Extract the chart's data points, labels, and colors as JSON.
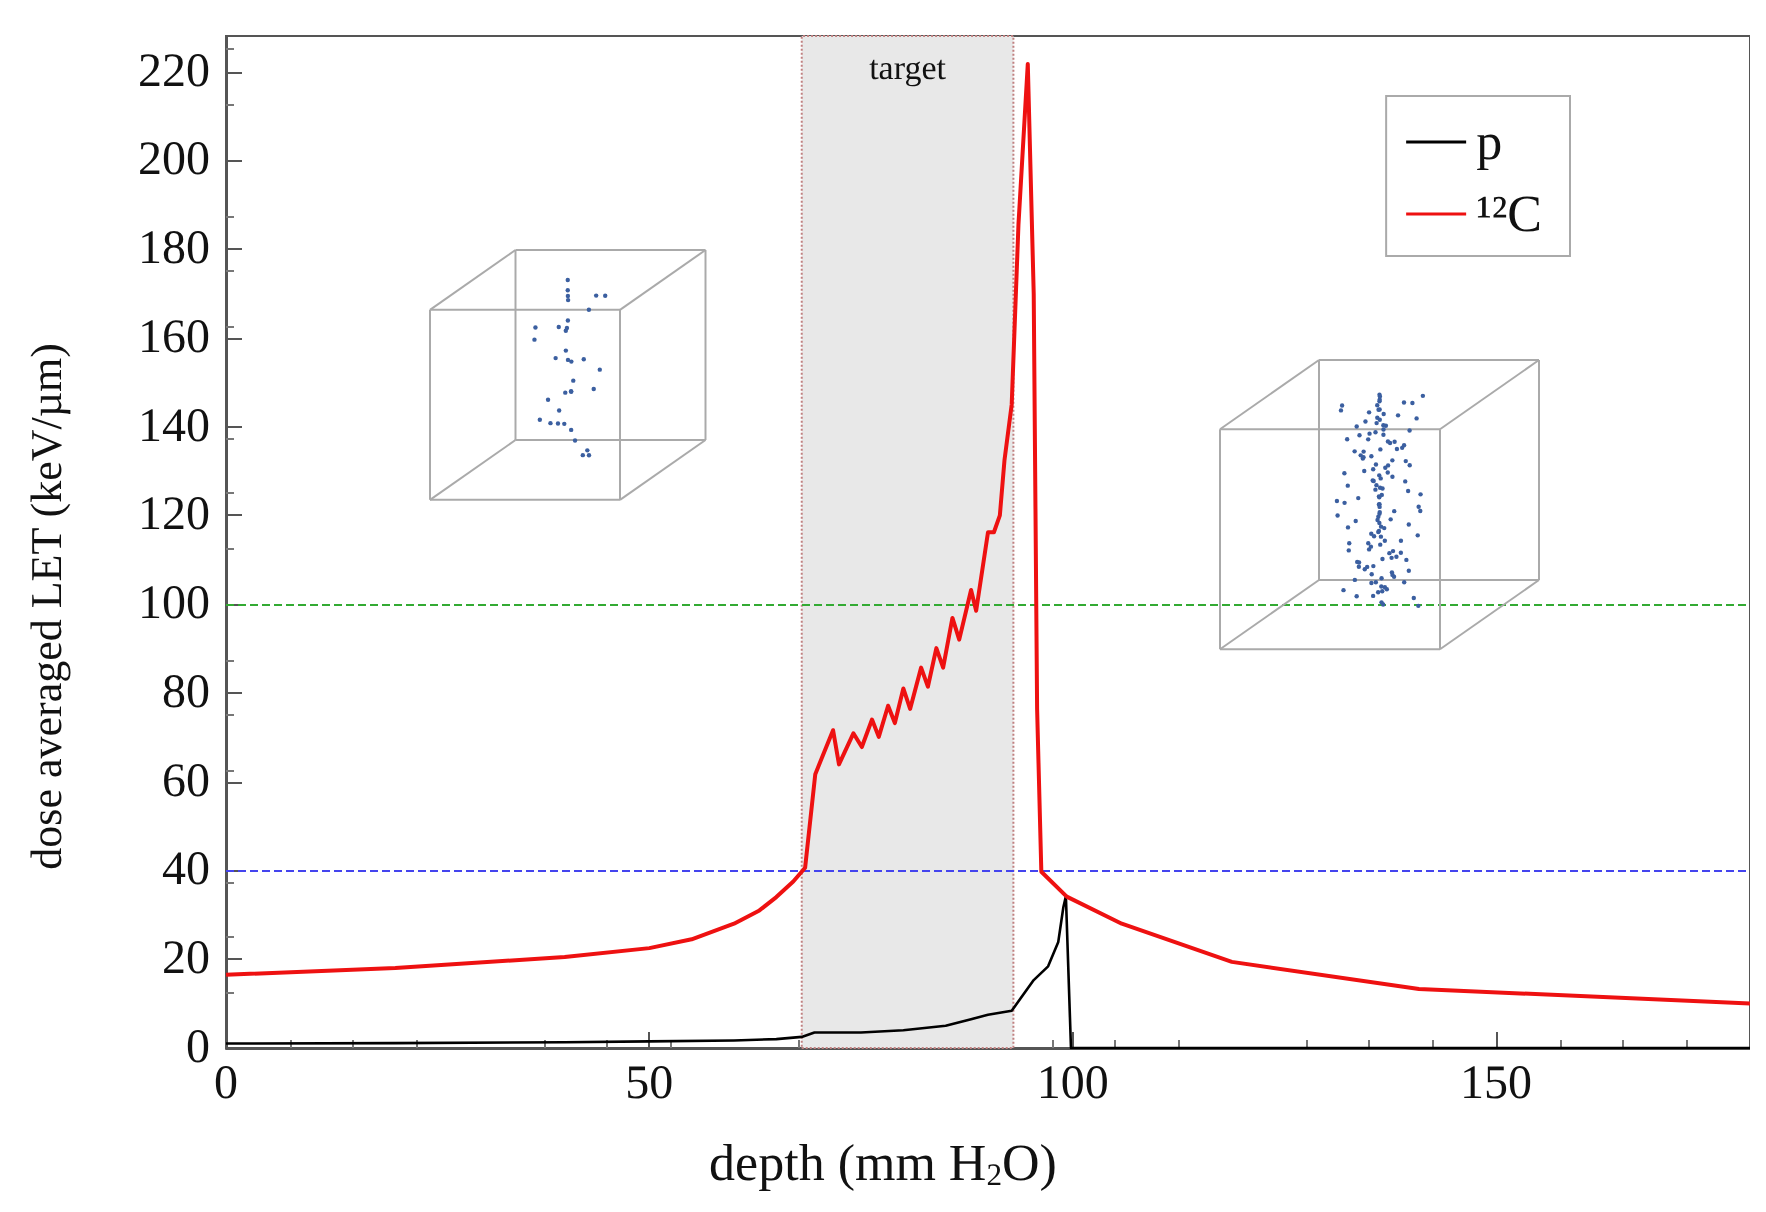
{
  "chart_data": {
    "type": "line",
    "xlabel": "depth (mm H$_{2}$O)",
    "ylabel": "dose averaged LET (keV/µm)",
    "xlim": [
      0,
      180
    ],
    "xticks": [
      0,
      50,
      100,
      150
    ],
    "ylim": [
      0,
      228
    ],
    "yticks": [
      0,
      20,
      40,
      60,
      80,
      100,
      120,
      140,
      160,
      180,
      200,
      220
    ],
    "grid": false,
    "legend": "top right",
    "marker": "none",
    "line_style": "solid",
    "series": [
      {
        "name": "p",
        "color": "#000000",
        "x": [
          0,
          20,
          40,
          50,
          60,
          65,
          68,
          69.5,
          75,
          80,
          85,
          88,
          90,
          92.8,
          95.4,
          97.1,
          98.3,
          98.9,
          99.2,
          99.8,
          100,
          180
        ],
        "values": [
          1,
          1.1,
          1.3,
          1.5,
          1.7,
          2,
          2.5,
          3.5,
          3.5,
          4,
          5,
          6.5,
          7.5,
          8.4,
          15.3,
          18.4,
          23.9,
          31.7,
          34.2,
          0,
          0,
          0
        ]
      },
      {
        "name": "¹²C",
        "color": "#ee1111",
        "x": [
          0,
          20,
          40,
          50,
          55,
          60,
          63,
          65,
          67,
          68.4,
          69.6,
          71.7,
          72.4,
          74.1,
          75.1,
          76.3,
          77.1,
          78.2,
          79,
          80,
          80.8,
          82.1,
          82.9,
          83.9,
          84.7,
          85.8,
          86.6,
          88,
          88.6,
          90,
          90.7,
          91.4,
          91.95,
          92.8,
          93.6,
          94.7,
          95.4,
          95.8,
          96.3,
          99.3,
          105.8,
          118.8,
          140.9,
          180
        ],
        "values": [
          16.5,
          18,
          20.5,
          22.5,
          24.5,
          28,
          31,
          34,
          37.5,
          40.6,
          61.7,
          71.6,
          63.9,
          70.9,
          67.8,
          74,
          70.1,
          77.1,
          73.2,
          81,
          76.4,
          85.7,
          81.4,
          90.1,
          85.7,
          96.9,
          92,
          103.2,
          98.5,
          116.2,
          116.2,
          120,
          132.5,
          145,
          185.6,
          221.7,
          169.9,
          76.4,
          39.7,
          34.1,
          28,
          19.4,
          13.3,
          10
        ]
      }
    ],
    "ref_lines": [
      {
        "axis": "y",
        "value": 100,
        "color": "#33aa33",
        "line_style": "dashed"
      },
      {
        "axis": "y",
        "value": 40,
        "color": "#4444ee",
        "line_style": "dashed"
      }
    ],
    "bands": [
      {
        "axis": "x",
        "from": 68,
        "to": 93,
        "label": "target",
        "color": "#e8e8e8"
      }
    ]
  }
}
